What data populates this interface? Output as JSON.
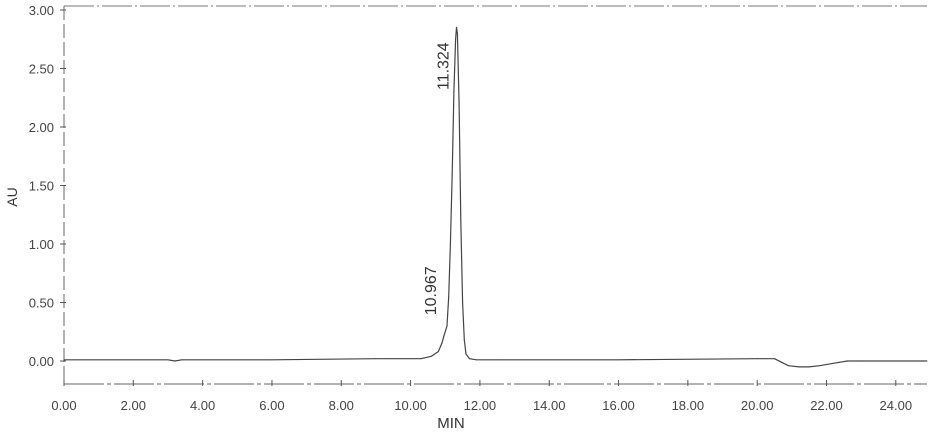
{
  "chart_data": {
    "type": "line",
    "title": "",
    "xlabel": "MIN",
    "ylabel": "AU",
    "xlim": [
      0,
      24.9
    ],
    "ylim": [
      -0.2,
      3.05
    ],
    "x_ticks": [
      0,
      2,
      4,
      6,
      8,
      10,
      12,
      14,
      16,
      18,
      20,
      22,
      24
    ],
    "x_tick_labels": [
      "0.00",
      "2.00",
      "4.00",
      "6.00",
      "8.00",
      "10.00",
      "12.00",
      "14.00",
      "16.00",
      "18.00",
      "20.00",
      "22.00",
      "24.00"
    ],
    "y_ticks": [
      0,
      0.5,
      1.0,
      1.5,
      2.0,
      2.5,
      3.0
    ],
    "y_tick_labels": [
      "0.00",
      "0.50",
      "1.00",
      "1.50",
      "2.00",
      "2.50",
      "3.00"
    ],
    "grid": false,
    "legend": "none",
    "series": [
      {
        "color": "#444444",
        "x": [
          0.0,
          3.0,
          3.2,
          3.4,
          6.0,
          9.0,
          10.3,
          10.6,
          10.8,
          10.9,
          10.967,
          11.05,
          11.1,
          11.15,
          11.2,
          11.25,
          11.3,
          11.324,
          11.35,
          11.4,
          11.45,
          11.5,
          11.55,
          11.6,
          11.7,
          11.9,
          12.5,
          16.0,
          20.0,
          20.5,
          20.7,
          20.9,
          21.2,
          21.5,
          21.8,
          22.2,
          22.6,
          23.0,
          24.9
        ],
        "y": [
          0.01,
          0.01,
          0.0,
          0.01,
          0.01,
          0.02,
          0.02,
          0.04,
          0.08,
          0.15,
          0.22,
          0.3,
          0.55,
          1.0,
          1.6,
          2.3,
          2.75,
          2.85,
          2.8,
          2.2,
          1.2,
          0.5,
          0.18,
          0.06,
          0.02,
          0.01,
          0.01,
          0.01,
          0.02,
          0.02,
          -0.01,
          -0.04,
          -0.05,
          -0.05,
          -0.04,
          -0.02,
          0.0,
          0.0,
          0.0
        ]
      }
    ],
    "annotations": [
      {
        "text": "11.324",
        "x": 11.324,
        "y": 2.52
      },
      {
        "text": "10.967",
        "x": 10.967,
        "y": 0.6
      }
    ]
  }
}
